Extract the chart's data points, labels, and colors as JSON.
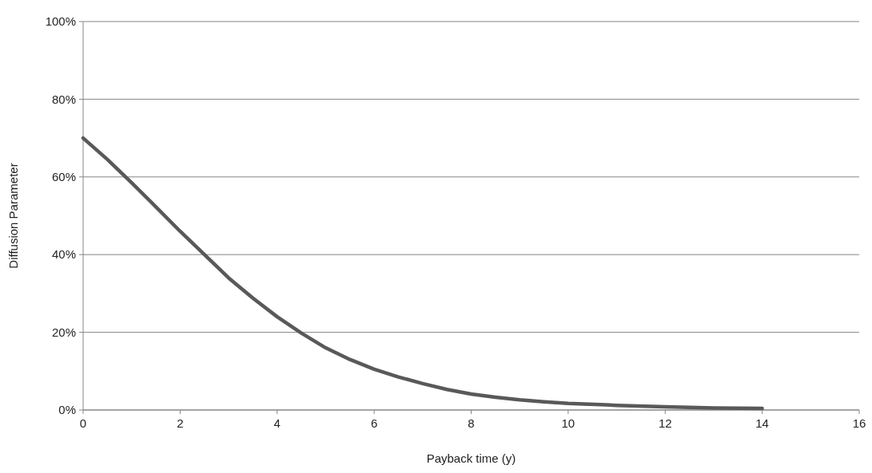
{
  "chart_data": {
    "type": "line",
    "xlabel": "Payback time (y)",
    "ylabel": "Diffusion Parameter",
    "x": [
      0,
      0.5,
      1,
      1.5,
      2,
      2.5,
      3,
      3.5,
      4,
      4.5,
      5,
      5.5,
      6,
      6.5,
      7,
      7.5,
      8,
      8.5,
      9,
      9.5,
      10,
      11,
      12,
      13,
      14
    ],
    "series": [
      {
        "color": "#595959",
        "values": [
          70,
          64.5,
          58.5,
          52.3,
          46,
          40,
          34,
          28.8,
          24,
          19.8,
          16,
          13,
          10.5,
          8.5,
          6.8,
          5.3,
          4.1,
          3.3,
          2.6,
          2.1,
          1.7,
          1.2,
          0.8,
          0.5,
          0.4
        ]
      }
    ],
    "xlim": [
      0,
      16
    ],
    "xticks": [
      0,
      2,
      4,
      6,
      8,
      10,
      12,
      14,
      16
    ],
    "ylim": [
      0,
      100
    ],
    "yticks": [
      {
        "value": 0,
        "label": "0%"
      },
      {
        "value": 20,
        "label": "20%"
      },
      {
        "value": 40,
        "label": "40%"
      },
      {
        "value": 60,
        "label": "60%"
      },
      {
        "value": 80,
        "label": "80%"
      },
      {
        "value": 100,
        "label": "100%"
      }
    ],
    "grid": "y",
    "marker": "none",
    "line_style": "solid"
  }
}
